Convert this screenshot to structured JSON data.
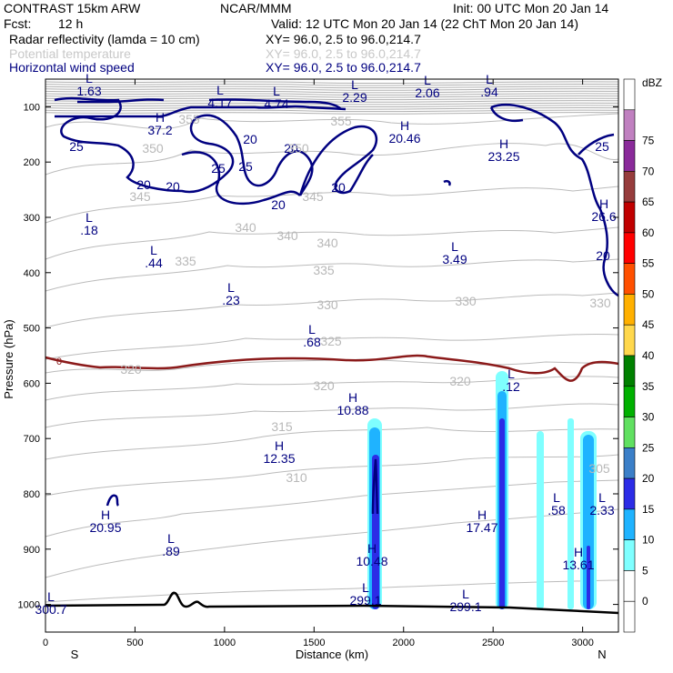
{
  "header": {
    "title": "CONTRAST 15km ARW",
    "center": "NCAR/MMM",
    "init": "Init: 00 UTC Mon 20 Jan 14",
    "fcst_label": "Fcst:",
    "fcst_value": "12 h",
    "valid": "Valid: 12 UTC Mon 20 Jan 14 (22 ChT Mon 20 Jan 14)"
  },
  "fields": [
    {
      "name": "Radar reflectivity (lamda = 10 cm)",
      "xy": "XY=  96.0,  2.5 to  96.0,214.7",
      "color": "#000080"
    },
    {
      "name": "Potential temperature",
      "xy": "XY=  96.0,  2.5 to  96.0,214.7",
      "color": "#c8c8c8"
    },
    {
      "name": "Horizontal wind speed",
      "xy": "XY=  96.0,  2.5 to  96.0,214.7",
      "color": "#000080"
    }
  ],
  "chart_data": {
    "type": "contour cross-section",
    "xlabel": "Distance (km)",
    "ylabel": "Pressure (hPa)",
    "xlim": [
      0,
      3200
    ],
    "ylim": [
      1050,
      50
    ],
    "x_ticks": [
      "0",
      "500",
      "1000",
      "1500",
      "2000",
      "2500",
      "3000"
    ],
    "y_ticks": [
      "100",
      "200",
      "300",
      "400",
      "500",
      "600",
      "700",
      "800",
      "900",
      "1000"
    ],
    "x_end_labels": {
      "left": "S",
      "right": "N"
    },
    "colorbar": {
      "unit": "dBZ",
      "levels": [
        "0",
        "5",
        "10",
        "15",
        "20",
        "25",
        "30",
        "35",
        "40",
        "45",
        "50",
        "55",
        "60",
        "65",
        "70",
        "75"
      ],
      "colors": [
        "#ffffff",
        "#ffffff",
        "#7fffff",
        "#1fb3ff",
        "#2c2ce6",
        "#3b7fc8",
        "#61e061",
        "#00b000",
        "#008000",
        "#ffd84d",
        "#ffb000",
        "#ff5000",
        "#ff0000",
        "#c00000",
        "#963c3c",
        "#8a2a9a",
        "#c080c0",
        "#ffffff"
      ]
    },
    "wind_labels": [
      "25",
      "20",
      "25",
      "20",
      "20",
      "25",
      "20",
      "20",
      "20",
      "25",
      "20"
    ],
    "theta_labels": [
      "355",
      "350",
      "350",
      "345",
      "345",
      "340",
      "340",
      "340",
      "335",
      "335",
      "330",
      "330",
      "330",
      "325",
      "320",
      "320",
      "320",
      "315",
      "310",
      "305",
      "355"
    ],
    "extrema": [
      {
        "type": "L",
        "value": "1.63"
      },
      {
        "type": "L",
        "value": "4.17"
      },
      {
        "type": "L",
        "value": "4.74"
      },
      {
        "type": "L",
        "value": "2.29"
      },
      {
        "type": "L",
        "value": "2.06"
      },
      {
        "type": "L",
        "value": ".94"
      },
      {
        "type": "H",
        "value": "37.2"
      },
      {
        "type": "H",
        "value": "20.46"
      },
      {
        "type": "H",
        "value": "23.25"
      },
      {
        "type": "H",
        "value": "26.6"
      },
      {
        "type": "L",
        "value": ".18"
      },
      {
        "type": "L",
        "value": ".44"
      },
      {
        "type": "L",
        "value": "3.49"
      },
      {
        "type": "L",
        "value": ".23"
      },
      {
        "type": "L",
        "value": ".68"
      },
      {
        "type": "L",
        "value": ".12"
      },
      {
        "type": "H",
        "value": "10.88"
      },
      {
        "type": "H",
        "value": "12.35"
      },
      {
        "type": "H",
        "value": "20.95"
      },
      {
        "type": "L",
        "value": ".89"
      },
      {
        "type": "H",
        "value": "10.48"
      },
      {
        "type": "H",
        "value": "17.47"
      },
      {
        "type": "L",
        "value": ".58"
      },
      {
        "type": "L",
        "value": "2.33"
      },
      {
        "type": "H",
        "value": "13.61"
      },
      {
        "type": "L",
        "value": "300.7"
      },
      {
        "type": "L",
        "value": "299.1"
      },
      {
        "type": "L",
        "value": "299.1"
      }
    ],
    "freezing_level_label": "0"
  }
}
